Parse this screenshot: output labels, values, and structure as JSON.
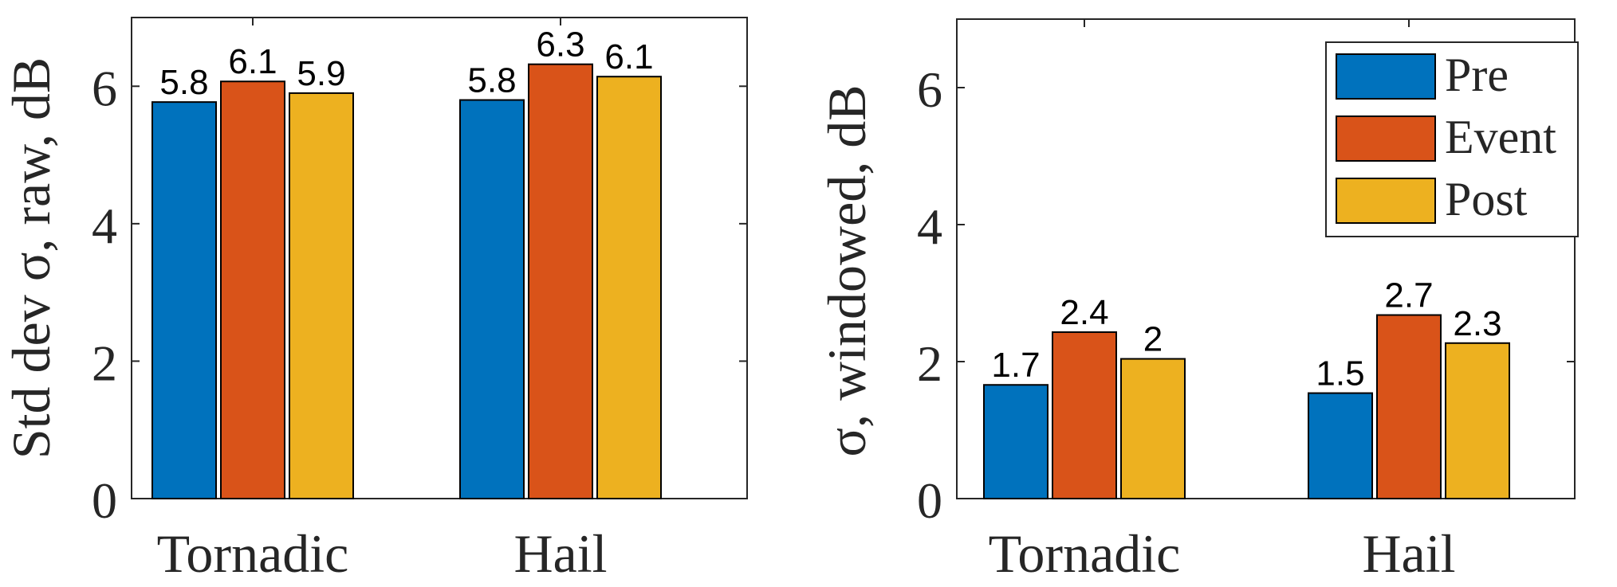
{
  "chart_data": [
    {
      "type": "bar",
      "ylabel": "Std dev σ, raw, dB",
      "ylim": [
        0,
        7
      ],
      "yticks": [
        0,
        2,
        4,
        6
      ],
      "categories": [
        "Tornadic",
        "Hail"
      ],
      "series": [
        {
          "name": "Pre",
          "values": [
            5.77,
            5.8
          ]
        },
        {
          "name": "Event",
          "values": [
            6.07,
            6.32
          ]
        },
        {
          "name": "Post",
          "values": [
            5.9,
            6.14
          ]
        }
      ],
      "data_labels": [
        [
          "5.8",
          "5.8"
        ],
        [
          "6.1",
          "6.3"
        ],
        [
          "5.9",
          "6.1"
        ]
      ],
      "legend": false
    },
    {
      "type": "bar",
      "ylabel": "σ, windowed, dB",
      "ylim": [
        0,
        7
      ],
      "yticks": [
        0,
        2,
        4,
        6
      ],
      "categories": [
        "Tornadic",
        "Hail"
      ],
      "series": [
        {
          "name": "Pre",
          "values": [
            1.66,
            1.54
          ]
        },
        {
          "name": "Event",
          "values": [
            2.43,
            2.68
          ]
        },
        {
          "name": "Post",
          "values": [
            2.04,
            2.27
          ]
        }
      ],
      "data_labels": [
        [
          "1.7",
          "1.5"
        ],
        [
          "2.4",
          "2.7"
        ],
        [
          "2",
          "2.3"
        ]
      ],
      "legend": true,
      "legend_position": "top-right"
    }
  ],
  "colors": {
    "Pre": "#0072BD",
    "Event": "#D95319",
    "Post": "#EDB120"
  }
}
